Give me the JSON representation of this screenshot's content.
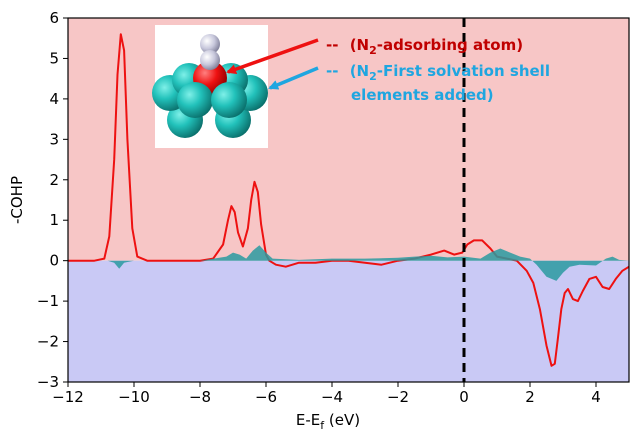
{
  "chart_data": {
    "type": "line",
    "xlabel": "E-E",
    "xlabel_sub": "f",
    "xlabel_unit": " (eV)",
    "ylabel": "-COHP",
    "xlim": [
      -12,
      5
    ],
    "ylim": [
      -3,
      6
    ],
    "xticks": [
      -12,
      -10,
      -8,
      -6,
      -4,
      -2,
      0,
      2,
      4
    ],
    "yticks": [
      -3,
      -2,
      -1,
      0,
      1,
      2,
      3,
      4,
      5,
      6
    ],
    "background": {
      "positive_region": "#f7c6c6",
      "negative_region": "#c9c9f5"
    },
    "fermi_level_x": 0,
    "legend": {
      "placement": "top-center",
      "entries": [
        {
          "dash": "--",
          "pre": "(N",
          "sub": "2",
          "post": "-adsorbing atom)",
          "color": "#c00000"
        },
        {
          "dash": "--",
          "pre": "(N",
          "sub": "2",
          "post": "-First solvation shell",
          "line2": "elements added)",
          "color": "#1fa6e0"
        }
      ]
    },
    "series": [
      {
        "name": "",
        "color": "#ee1111",
        "style": "line",
        "x": [
          -12,
          -11.2,
          -10.9,
          -10.75,
          -10.6,
          -10.5,
          -10.4,
          -10.3,
          -10.2,
          -10.05,
          -9.9,
          -9.6,
          -9.0,
          -8.0,
          -7.6,
          -7.3,
          -7.15,
          -7.05,
          -6.95,
          -6.85,
          -6.7,
          -6.55,
          -6.45,
          -6.35,
          -6.25,
          -6.15,
          -6.0,
          -5.9,
          -5.7,
          -5.4,
          -5.0,
          -4.5,
          -4.0,
          -3.5,
          -3.0,
          -2.5,
          -2.0,
          -1.5,
          -1.0,
          -0.6,
          -0.3,
          -0.05,
          0.1,
          0.3,
          0.55,
          0.8,
          1.0,
          1.3,
          1.6,
          1.9,
          2.1,
          2.3,
          2.5,
          2.65,
          2.75,
          2.85,
          2.95,
          3.05,
          3.15,
          3.3,
          3.45,
          3.6,
          3.8,
          4.0,
          4.2,
          4.4,
          4.6,
          4.8,
          5.0
        ],
        "y": [
          0,
          0,
          0.05,
          0.6,
          2.5,
          4.6,
          5.6,
          5.2,
          3.0,
          0.8,
          0.1,
          0,
          0,
          0,
          0.05,
          0.4,
          1.0,
          1.35,
          1.2,
          0.7,
          0.35,
          0.8,
          1.5,
          1.95,
          1.7,
          0.9,
          0.15,
          0,
          -0.1,
          -0.15,
          -0.05,
          -0.05,
          0,
          0,
          -0.05,
          -0.1,
          0,
          0.05,
          0.15,
          0.25,
          0.15,
          0.2,
          0.4,
          0.5,
          0.5,
          0.3,
          0.1,
          0.05,
          0.0,
          -0.25,
          -0.55,
          -1.2,
          -2.1,
          -2.6,
          -2.55,
          -1.9,
          -1.2,
          -0.8,
          -0.7,
          -0.95,
          -1.0,
          -0.75,
          -0.45,
          -0.4,
          -0.65,
          -0.7,
          -0.45,
          -0.25,
          -0.15
        ]
      },
      {
        "name": "",
        "color": "#2a9aa0",
        "style": "filled",
        "x": [
          -12,
          -10.8,
          -10.6,
          -10.45,
          -10.3,
          -10.0,
          -8.0,
          -7.2,
          -7.0,
          -6.8,
          -6.6,
          -6.4,
          -6.2,
          -6.0,
          -5.8,
          -5.0,
          -4.0,
          -3.0,
          -2.0,
          -1.5,
          -1.0,
          -0.5,
          0,
          0.5,
          0.8,
          1.1,
          1.4,
          1.7,
          2.0,
          2.2,
          2.5,
          2.8,
          3.0,
          3.2,
          3.5,
          4.0,
          4.3,
          4.5,
          4.7,
          5.0
        ],
        "y": [
          0,
          0,
          -0.05,
          -0.2,
          -0.05,
          0,
          0,
          0.1,
          0.2,
          0.15,
          0.05,
          0.25,
          0.38,
          0.2,
          0.05,
          0.02,
          0.05,
          0.05,
          0.07,
          0.1,
          0.12,
          0.08,
          0.1,
          0.05,
          0.2,
          0.3,
          0.2,
          0.1,
          0.05,
          -0.1,
          -0.4,
          -0.5,
          -0.3,
          -0.15,
          -0.1,
          -0.12,
          0.05,
          0.1,
          0.02,
          0
        ]
      }
    ]
  }
}
